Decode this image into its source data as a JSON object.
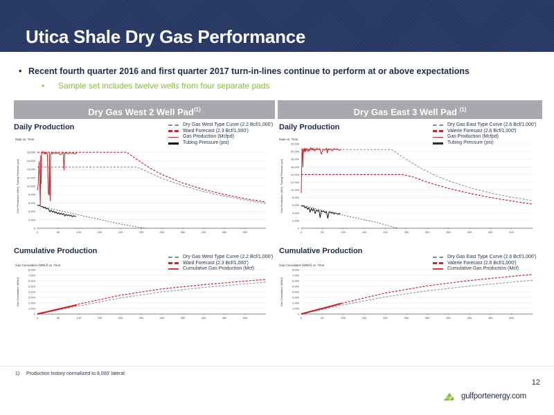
{
  "title": "Utica Shale Dry Gas Performance",
  "bullets": {
    "main": "Recent fourth quarter 2016 and first quarter 2017 turn-in-lines continue to perform at or above expectations",
    "sub": "Sample set includes twelve wells from four separate pads",
    "dot": "•"
  },
  "panels": {
    "west": {
      "header": "Dry Gas West 2 Well Pad",
      "header_sup": "(1)",
      "daily_label": "Daily Production",
      "cum_label": "Cumulative Production",
      "daily_legend": [
        "Dry Gas West Type Curve (2.2 Bcf/1,000')",
        "Ward Forecast (2.3 Bcf/1,000')",
        "Gas Production (Mcfpd)",
        "Tubing Pressure (psi)"
      ],
      "cum_legend": [
        "Dry Gas West Type Curve (2.2 Bcf/1,000')",
        "Ward Forecast (2.3 Bcf/1,000')",
        "Cumulative Gas Production (Mcf)"
      ]
    },
    "east": {
      "header": "Dry Gas East 3 Well Pad",
      "header_sup": "(1)",
      "daily_label": "Daily Production",
      "cum_label": "Cumulative Production",
      "daily_legend": [
        "Dry Gas East Type Curve (2.6 Bcf/1,000')",
        "Valerie Forecast (2.6 Bcf/1,000')",
        "Gas Production (Mcfpd)",
        "Tubing Pressure (psi)"
      ],
      "cum_legend": [
        "Dry Gas East Type Curve (2.6 Bcf/1,000')",
        "Valerie Forecast (2.6 Bcf/1,000')",
        "Cumulative Gas Production (Mcf)"
      ]
    }
  },
  "chart_data": [
    {
      "id": "west-daily",
      "type": "line",
      "title": "Rate vs. Time",
      "ylabel": "Gas Production (Mcf), Tubing Pressure (psi)",
      "xlim": [
        0,
        550
      ],
      "ylim": [
        0,
        20000
      ],
      "xticks": [
        0,
        50,
        100,
        150,
        200,
        250,
        300,
        350,
        400,
        450,
        500
      ],
      "yticks": [
        0,
        2000,
        4000,
        6000,
        8000,
        10000,
        12000,
        14000,
        16000,
        18000
      ],
      "ytick_labels": [
        "0",
        "2,000",
        "4,000",
        "6,000",
        "8,000",
        "10,000",
        "12,000",
        "14,000",
        "16,000",
        "18,000"
      ],
      "series": [
        {
          "name": "Dry Gas West Type Curve (2.2 Bcf/1,000')",
          "style": "type",
          "x": [
            0,
            240,
            260,
            300,
            350,
            400,
            450,
            500,
            550
          ],
          "y": [
            14500,
            14500,
            13600,
            11800,
            10100,
            8700,
            7600,
            6700,
            5900
          ]
        },
        {
          "name": "Ward Forecast (2.3 Bcf/1,000')",
          "style": "forecast",
          "x": [
            0,
            215,
            240,
            270,
            300,
            350,
            400,
            450,
            500,
            550
          ],
          "y": [
            18000,
            18000,
            16300,
            14300,
            12700,
            10700,
            9200,
            8000,
            7000,
            6200
          ]
        },
        {
          "name": "Gas Production (Mcfpd)",
          "style": "gas",
          "x": [
            0,
            2,
            4,
            5,
            7,
            8,
            9,
            10,
            11,
            12,
            14,
            15,
            17,
            18,
            20,
            22,
            24,
            26,
            28,
            29,
            30,
            31,
            32,
            34,
            36,
            38,
            40,
            44,
            48,
            52,
            56,
            60,
            62,
            64,
            66,
            67,
            70,
            74,
            78,
            82,
            86,
            90,
            95
          ],
          "y": [
            9000,
            10400,
            15800,
            12600,
            5600,
            17200,
            10600,
            17600,
            18100,
            17800,
            18200,
            17900,
            17600,
            17950,
            17600,
            18000,
            17700,
            8400,
            7900,
            18000,
            8600,
            6500,
            17700,
            17900,
            17600,
            18000,
            17800,
            17700,
            17900,
            17700,
            17400,
            17800,
            17900,
            13800,
            17900,
            17700,
            17900,
            17600,
            17950,
            17700,
            17800,
            17600,
            17900
          ]
        },
        {
          "name": "Tubing Pressure (psi)",
          "style": "tubing",
          "x": [
            0,
            3,
            6,
            9,
            12,
            15,
            18,
            21,
            24,
            27,
            30,
            33,
            36,
            39,
            42,
            45,
            48,
            51,
            54,
            57,
            60,
            63,
            66,
            69,
            72,
            75,
            78,
            81,
            84,
            87,
            90,
            93
          ],
          "y": [
            5600,
            5300,
            5500,
            5100,
            5200,
            4800,
            5000,
            4600,
            4700,
            4500,
            3900,
            4300,
            3800,
            4100,
            3600,
            3900,
            3400,
            3700,
            3300,
            3600,
            3200,
            3500,
            2900,
            3300,
            3000,
            3200,
            2900,
            3100,
            2700,
            3000,
            2800,
            2900
          ]
        },
        {
          "name": "Tubing Pressure Trend",
          "style": "tubing-trend",
          "x": [
            0,
            120,
            200,
            260
          ],
          "y": [
            5400,
            2700,
            1000,
            0
          ]
        }
      ]
    },
    {
      "id": "east-daily",
      "type": "line",
      "title": "Rate vs. Time",
      "ylabel": "Gas Production (Mcf), Tubing Pressure (psi)",
      "xlim": [
        0,
        550
      ],
      "ylim": [
        0,
        22000
      ],
      "xticks": [
        0,
        50,
        100,
        150,
        200,
        250,
        300,
        350,
        400,
        450,
        500
      ],
      "yticks": [
        0,
        2000,
        4000,
        6000,
        8000,
        10000,
        12000,
        14000,
        16000,
        18000,
        20000,
        22000
      ],
      "ytick_labels": [
        "0",
        "2,000",
        "4,000",
        "6,000",
        "8,000",
        "10,000",
        "12,000",
        "14,000",
        "16,000",
        "18,000",
        "20,000",
        "22,000"
      ],
      "series": [
        {
          "name": "Dry Gas East Type Curve (2.6 Bcf/1,000')",
          "style": "type",
          "x": [
            0,
            215,
            245,
            280,
            320,
            360,
            400,
            450,
            500,
            550
          ],
          "y": [
            20500,
            20500,
            18300,
            15900,
            13700,
            12000,
            10600,
            9200,
            8100,
            7200
          ]
        },
        {
          "name": "Valerie Forecast (2.6 Bcf/1,000')",
          "style": "forecast",
          "x": [
            0,
            240,
            265,
            300,
            350,
            400,
            450,
            500,
            550
          ],
          "y": [
            14000,
            14000,
            13400,
            12000,
            10400,
            9100,
            8000,
            7100,
            6300
          ]
        },
        {
          "name": "Gas Production (Mcfpd)",
          "style": "gas",
          "x": [
            0,
            2,
            3,
            4,
            5,
            6,
            7,
            8,
            9,
            10,
            11,
            12,
            14,
            16,
            18,
            20,
            22,
            24,
            26,
            28,
            30,
            32,
            34,
            36,
            38,
            40,
            44,
            48,
            52,
            56,
            60,
            62,
            64,
            66,
            70,
            74,
            78,
            82,
            86,
            90,
            95
          ],
          "y": [
            9200,
            20800,
            19700,
            16000,
            20600,
            19800,
            20900,
            20100,
            20700,
            19900,
            20800,
            20300,
            20800,
            20000,
            20700,
            20200,
            21000,
            20400,
            20900,
            20300,
            20800,
            20100,
            20700,
            20500,
            20900,
            20400,
            20800,
            19300,
            20700,
            20300,
            20900,
            19600,
            20800,
            20400,
            20700,
            20200,
            20800,
            20500,
            20700,
            20300,
            20600
          ]
        },
        {
          "name": "Tubing Pressure (psi)",
          "style": "tubing",
          "x": [
            0,
            3,
            6,
            9,
            12,
            15,
            18,
            21,
            24,
            27,
            30,
            33,
            36,
            39,
            42,
            45,
            48,
            51,
            54,
            57,
            60,
            63,
            66,
            69,
            72,
            75,
            78,
            81,
            84,
            87,
            90,
            93
          ],
          "y": [
            6000,
            5700,
            5900,
            5300,
            5600,
            4900,
            5400,
            4200,
            5200,
            4500,
            5100,
            3800,
            4800,
            4400,
            4700,
            2800,
            4600,
            4300,
            4500,
            4000,
            4400,
            2600,
            4100,
            4300,
            3900,
            4200,
            3700,
            4000,
            3800,
            3600,
            3900,
            3700
          ]
        },
        {
          "name": "Tubing Pressure Trend",
          "style": "tubing-trend",
          "x": [
            0,
            100,
            180,
            230
          ],
          "y": [
            6000,
            3400,
            1500,
            0
          ]
        }
      ]
    },
    {
      "id": "west-cum",
      "type": "line",
      "title": "Gas Cumulative (MMcf) vs. Time",
      "ylabel": "Gas Cumulative (MMcf)",
      "xlim": [
        0,
        550
      ],
      "ylim": [
        0,
        8000
      ],
      "xticks": [
        0,
        50,
        100,
        150,
        200,
        250,
        300,
        350,
        400,
        450,
        500
      ],
      "yticks": [
        0,
        1000,
        2000,
        3000,
        4000,
        5000,
        6000,
        7000,
        8000
      ],
      "ytick_labels": [
        "0",
        "1,000",
        "2,000",
        "3,000",
        "4,000",
        "5,000",
        "6,000",
        "7,000",
        "8,000"
      ],
      "series": [
        {
          "name": "Dry Gas West Type Curve (2.2 Bcf/1,000')",
          "style": "type",
          "x": [
            0,
            100,
            200,
            300,
            400,
            500,
            550
          ],
          "y": [
            0,
            1450,
            2900,
            4000,
            4800,
            5450,
            5750
          ]
        },
        {
          "name": "Ward Forecast (2.3 Bcf/1,000')",
          "style": "forecast",
          "x": [
            0,
            100,
            200,
            300,
            400,
            500,
            550
          ],
          "y": [
            0,
            1800,
            3400,
            4550,
            5300,
            5950,
            6250
          ]
        },
        {
          "name": "Cumulative Gas Production (Mcf)",
          "style": "cum",
          "x": [
            0,
            20,
            40,
            60,
            80,
            95
          ],
          "y": [
            0,
            340,
            690,
            1040,
            1390,
            1650
          ]
        }
      ]
    },
    {
      "id": "east-cum",
      "type": "line",
      "title": "Gas Cumulative (MMcf) vs. Time",
      "ylabel": "Gas Cumulative (MMcf)",
      "xlim": [
        0,
        550
      ],
      "ylim": [
        0,
        8000
      ],
      "xticks": [
        0,
        50,
        100,
        150,
        200,
        250,
        300,
        350,
        400,
        450,
        500
      ],
      "yticks": [
        0,
        1000,
        2000,
        3000,
        4000,
        5000,
        6000,
        7000,
        8000
      ],
      "ytick_labels": [
        "0",
        "1,000",
        "2,000",
        "3,000",
        "4,000",
        "5,000",
        "6,000",
        "7,000",
        "8,000"
      ],
      "series": [
        {
          "name": "Dry Gas East Type Curve (2.6 Bcf/1,000')",
          "style": "type",
          "x": [
            0,
            100,
            200,
            300,
            400,
            500,
            550
          ],
          "y": [
            0,
            1650,
            3100,
            4200,
            5050,
            5750,
            6100
          ]
        },
        {
          "name": "Valerie Forecast (2.6 Bcf/1,000')",
          "style": "forecast",
          "x": [
            0,
            100,
            200,
            300,
            400,
            500,
            550
          ],
          "y": [
            0,
            2000,
            3800,
            5100,
            6050,
            6800,
            7150
          ]
        },
        {
          "name": "Cumulative Gas Production (Mcf)",
          "style": "cum",
          "x": [
            0,
            20,
            40,
            60,
            80,
            95
          ],
          "y": [
            0,
            400,
            800,
            1200,
            1600,
            1900
          ]
        }
      ]
    }
  ],
  "colors": {
    "navy": "#22345f",
    "red": "#c8252b",
    "gray_line": "#888a8e",
    "green": "#8bbd3c",
    "header_gray": "#a8a9ad"
  },
  "footnote": {
    "num": "1)",
    "text": "Production history normalized to 8,000' lateral"
  },
  "page_number": "12",
  "logo": {
    "text": "gulfportenergy.com",
    "icon": "gulfport-logo-icon"
  }
}
